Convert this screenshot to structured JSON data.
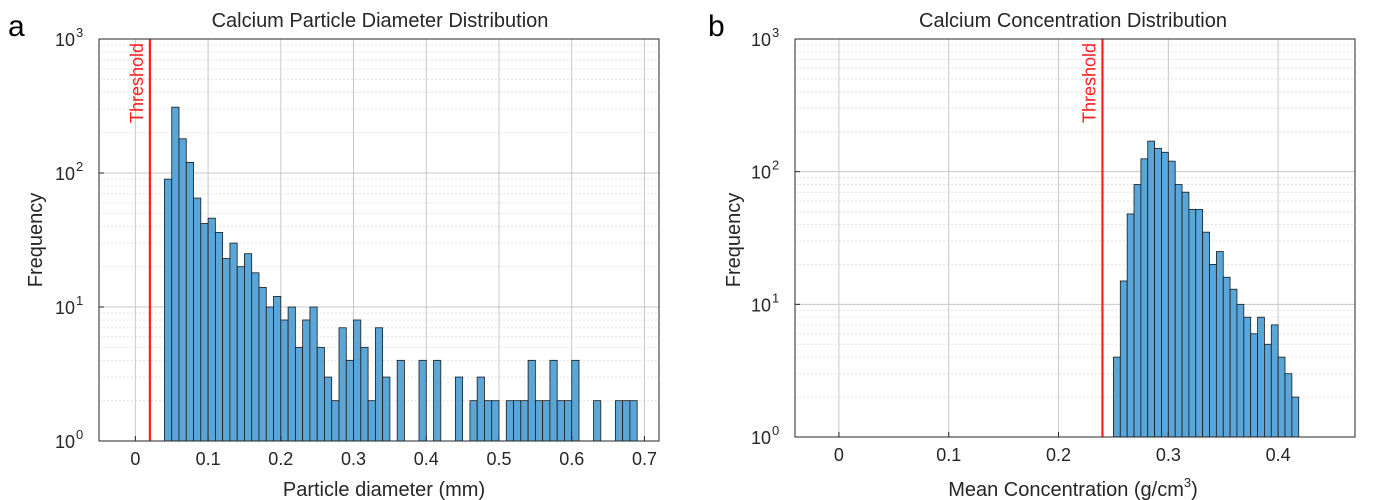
{
  "chart_data": [
    {
      "type": "bar",
      "panel_label": "a",
      "title": "Calcium Particle Diameter Distribution",
      "xlabel": "Particle diameter (mm)",
      "ylabel": "Frequency",
      "yscale": "log",
      "xlim": [
        -0.05,
        0.72
      ],
      "ylim": [
        1,
        1000
      ],
      "xticks": [
        0,
        0.1,
        0.2,
        0.3,
        0.4,
        0.5,
        0.6,
        0.7
      ],
      "xtick_labels": [
        "0",
        "0.1",
        "0.2",
        "0.3",
        "0.4",
        "0.5",
        "0.6",
        "0.7"
      ],
      "yticks": [
        {
          "base": "10",
          "exp": "0",
          "value": 1
        },
        {
          "base": "10",
          "exp": "1",
          "value": 10
        },
        {
          "base": "10",
          "exp": "2",
          "value": 100
        },
        {
          "base": "10",
          "exp": "3",
          "value": 1000
        }
      ],
      "grid": true,
      "threshold": {
        "value": 0.02,
        "label": "Threshold"
      },
      "bin_start": 0.04,
      "bin_width": 0.01,
      "values": [
        90,
        310,
        180,
        120,
        65,
        42,
        46,
        36,
        23,
        30,
        20,
        25,
        18,
        14,
        10,
        12,
        8,
        10,
        5,
        8,
        10,
        5,
        3,
        2,
        7,
        4,
        8,
        5,
        2,
        7,
        3,
        1,
        4,
        1,
        1,
        4,
        1,
        4,
        1,
        1,
        3,
        1,
        2,
        3,
        2,
        2,
        1,
        2,
        2,
        2,
        4,
        2,
        2,
        4,
        2,
        2,
        4,
        1,
        1,
        2,
        1,
        1,
        2,
        2,
        2
      ]
    },
    {
      "type": "bar",
      "panel_label": "b",
      "title": "Calcium Concentration Distribution",
      "xlabel_main": "Mean Concentration (g/cm",
      "xlabel_sup": "3",
      "xlabel_end": ")",
      "ylabel": "Frequency",
      "yscale": "log",
      "xlim": [
        -0.04,
        0.47
      ],
      "ylim": [
        1,
        1000
      ],
      "xticks": [
        0,
        0.1,
        0.2,
        0.3,
        0.4
      ],
      "xtick_labels": [
        "0",
        "0.1",
        "0.2",
        "0.3",
        "0.4"
      ],
      "yticks": [
        {
          "base": "10",
          "exp": "0",
          "value": 1
        },
        {
          "base": "10",
          "exp": "1",
          "value": 10
        },
        {
          "base": "10",
          "exp": "2",
          "value": 100
        },
        {
          "base": "10",
          "exp": "3",
          "value": 1000
        }
      ],
      "grid": true,
      "threshold": {
        "value": 0.24,
        "label": "Threshold"
      },
      "bin_start": 0.25,
      "bin_width": 0.00625,
      "values": [
        4,
        15,
        48,
        80,
        125,
        170,
        150,
        140,
        120,
        80,
        70,
        52,
        52,
        35,
        20,
        25,
        16,
        13,
        10,
        8,
        6,
        8,
        5,
        7,
        4,
        3,
        2
      ]
    }
  ]
}
